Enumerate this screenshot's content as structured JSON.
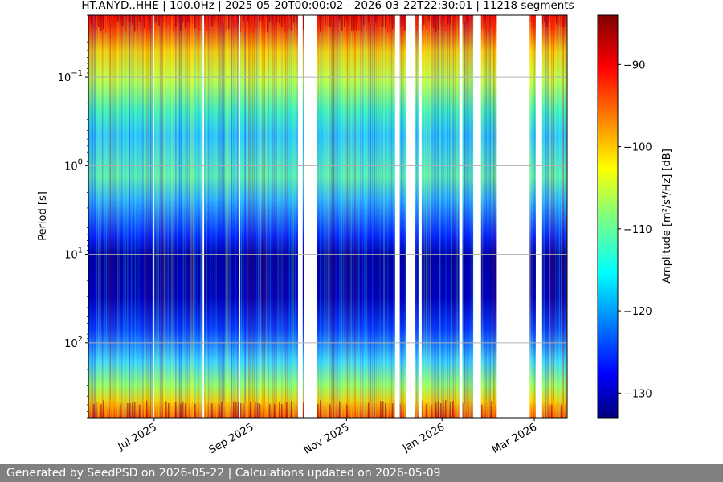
{
  "chart_data": {
    "type": "heatmap",
    "title": "HT.ANYD..HHE | 100.0Hz | 2025-05-20T00:00:02 - 2026-03-22T22:30:01 | 11218 segments",
    "ylabel": "Period [s]",
    "y_scale": "log",
    "y_inverted": true,
    "ylim": [
      0.02,
      700
    ],
    "y_ticks": [
      {
        "value": 0.1,
        "base": "10",
        "exp": "−1"
      },
      {
        "value": 1,
        "base": "10",
        "exp": "0"
      },
      {
        "value": 10,
        "base": "10",
        "exp": "1"
      },
      {
        "value": 100,
        "base": "10",
        "exp": "2"
      }
    ],
    "xlim": [
      "2025-05-20",
      "2026-03-22"
    ],
    "x_ticks": [
      {
        "date": "2025-07-01",
        "label": "Jul 2025"
      },
      {
        "date": "2025-09-01",
        "label": "Sep 2025"
      },
      {
        "date": "2025-11-01",
        "label": "Nov 2025"
      },
      {
        "date": "2026-01-01",
        "label": "Jan 2026"
      },
      {
        "date": "2026-03-01",
        "label": "Mar 2026"
      }
    ],
    "grid": "horizontal",
    "colormap": "jet",
    "colorbar": {
      "label": "Amplitude [m²/s⁴/Hz] [dB]",
      "range": [
        -133,
        -84
      ],
      "ticks": [
        {
          "value": -90,
          "label": "−90"
        },
        {
          "value": -100,
          "label": "−100"
        },
        {
          "value": -110,
          "label": "−110"
        },
        {
          "value": -120,
          "label": "−120"
        },
        {
          "value": -130,
          "label": "−130"
        }
      ]
    },
    "data_gaps": [
      [
        "2025-06-30",
        "2025-07-01"
      ],
      [
        "2025-08-01",
        "2025-08-02"
      ],
      [
        "2025-08-24",
        "2025-08-25"
      ],
      [
        "2025-10-01",
        "2025-10-04"
      ],
      [
        "2025-10-05",
        "2025-10-13"
      ],
      [
        "2025-12-02",
        "2025-12-05"
      ],
      [
        "2025-12-09",
        "2025-12-15"
      ],
      [
        "2025-12-17",
        "2025-12-19"
      ],
      [
        "2026-01-12",
        "2026-01-14"
      ],
      [
        "2026-01-21",
        "2026-01-26"
      ],
      [
        "2026-02-05",
        "2026-02-26"
      ],
      [
        "2026-03-02",
        "2026-03-06"
      ]
    ]
  },
  "footer": {
    "text": "Generated by SeedPSD on 2026-05-22 | Calculations updated on 2026-05-09"
  }
}
